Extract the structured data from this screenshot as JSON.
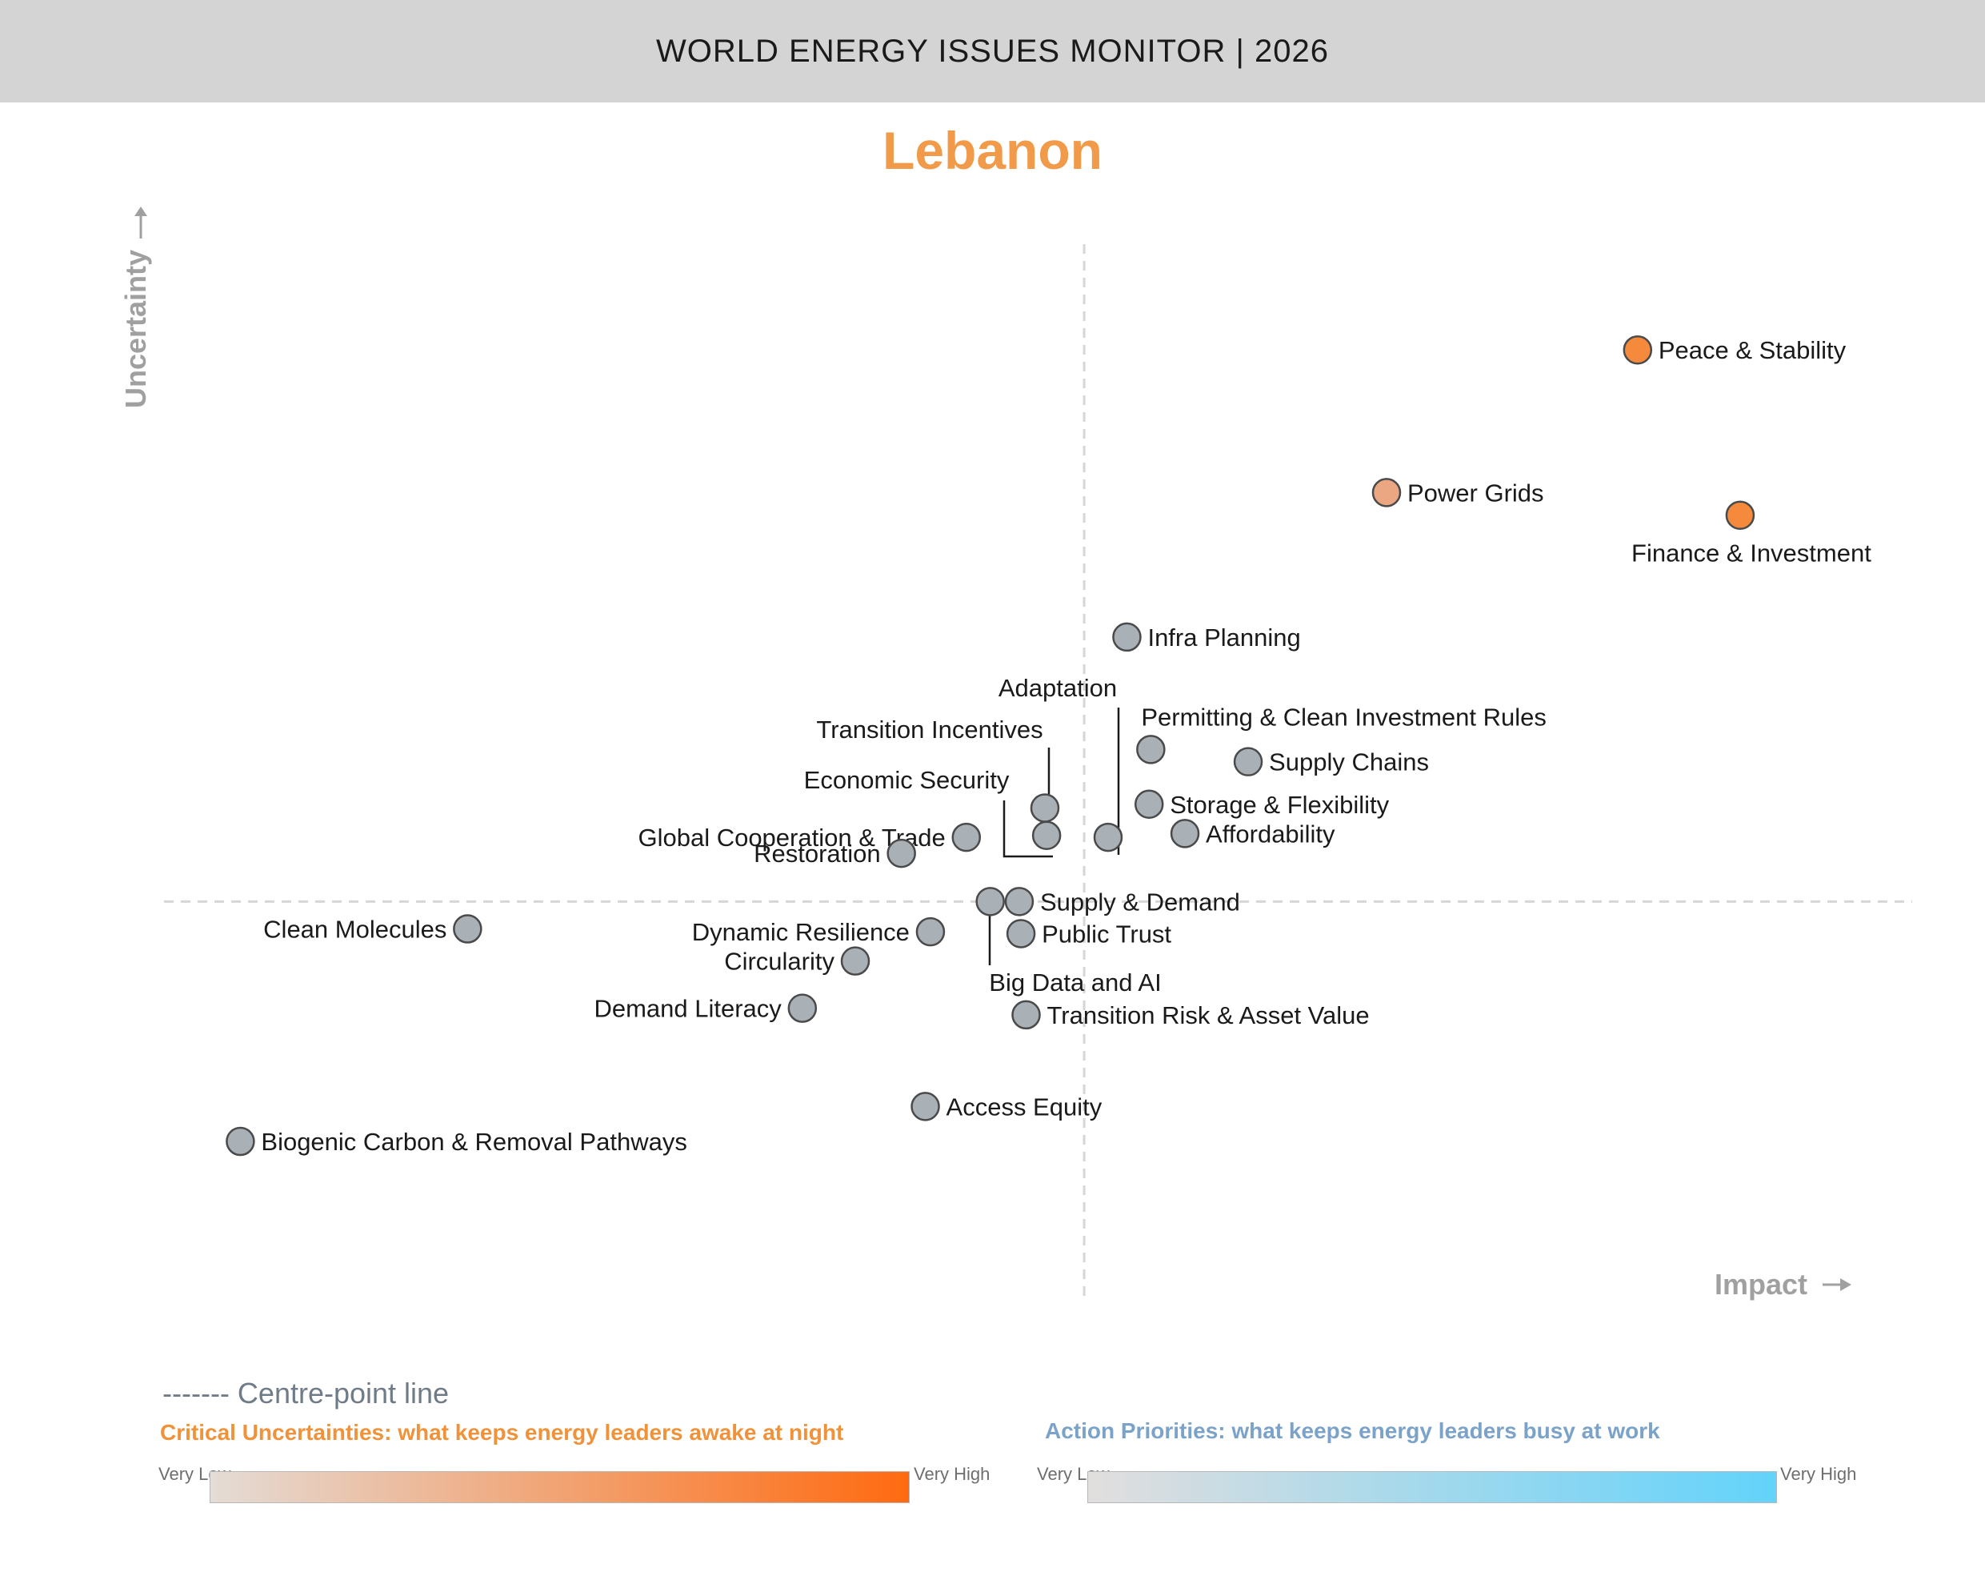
{
  "header": {
    "title": "WORLD ENERGY ISSUES MONITOR | 2026"
  },
  "country": "Lebanon",
  "chart_data": {
    "type": "scatter",
    "title": "Lebanon",
    "xlabel": "Impact",
    "ylabel": "Uncertainty",
    "xlim": [
      0,
      100
    ],
    "ylim": [
      0,
      100
    ],
    "centre_point": {
      "x": 53.4,
      "y": 37.6
    },
    "colors": {
      "very_high": "#f58a3c",
      "high": "#eaa781",
      "low": "#a9b0b6"
    },
    "points": [
      {
        "name": "Peace & Stability",
        "x": 85.8,
        "y": 96.0,
        "level": "very_high",
        "label_pos": "right"
      },
      {
        "name": "Power Grids",
        "x": 71.1,
        "y": 80.9,
        "level": "high",
        "label_pos": "right"
      },
      {
        "name": "Finance & Investment",
        "x": 91.8,
        "y": 78.5,
        "level": "very_high",
        "label_pos": "below"
      },
      {
        "name": "Infra Planning",
        "x": 55.9,
        "y": 65.6,
        "level": "low",
        "label_pos": "right"
      },
      {
        "name": "Permitting & Clean Investment Rules",
        "x": 57.3,
        "y": 53.7,
        "level": "low",
        "label_pos": "above"
      },
      {
        "name": "Supply Chains",
        "x": 63.0,
        "y": 52.4,
        "level": "low",
        "label_pos": "right"
      },
      {
        "name": "Storage & Flexibility",
        "x": 57.2,
        "y": 47.9,
        "level": "low",
        "label_pos": "right"
      },
      {
        "name": "Affordability",
        "x": 59.3,
        "y": 44.8,
        "level": "low",
        "label_pos": "right"
      },
      {
        "name": "Adaptation",
        "x": 54.8,
        "y": 44.4,
        "level": "low",
        "label_pos": "leader"
      },
      {
        "name": "Transition Incentives",
        "x": 51.1,
        "y": 47.5,
        "level": "low",
        "label_pos": "leader"
      },
      {
        "name": "Economic Security",
        "x": 51.2,
        "y": 44.6,
        "level": "low",
        "label_pos": "leader"
      },
      {
        "name": "Global Cooperation & Trade",
        "x": 46.5,
        "y": 44.4,
        "level": "low",
        "label_pos": "left"
      },
      {
        "name": "Restoration",
        "x": 42.7,
        "y": 42.7,
        "level": "low",
        "label_pos": "left"
      },
      {
        "name": "Supply & Demand",
        "x": 49.6,
        "y": 37.6,
        "level": "low",
        "label_pos": "right"
      },
      {
        "name": "Big Data and AI",
        "x": 47.9,
        "y": 37.6,
        "level": "low",
        "label_pos": "leader"
      },
      {
        "name": "Public Trust",
        "x": 49.7,
        "y": 34.2,
        "level": "low",
        "label_pos": "right"
      },
      {
        "name": "Dynamic Resilience",
        "x": 44.4,
        "y": 34.4,
        "level": "low",
        "label_pos": "left"
      },
      {
        "name": "Circularity",
        "x": 40.0,
        "y": 31.3,
        "level": "low",
        "label_pos": "left"
      },
      {
        "name": "Clean Molecules",
        "x": 17.3,
        "y": 34.7,
        "level": "low",
        "label_pos": "left"
      },
      {
        "name": "Demand Literacy",
        "x": 36.9,
        "y": 26.3,
        "level": "low",
        "label_pos": "left"
      },
      {
        "name": "Transition Risk & Asset Value",
        "x": 50.0,
        "y": 25.6,
        "level": "low",
        "label_pos": "right"
      },
      {
        "name": "Access Equity",
        "x": 44.1,
        "y": 15.9,
        "level": "low",
        "label_pos": "right"
      },
      {
        "name": "Biogenic Carbon & Removal Pathways",
        "x": 4.0,
        "y": 12.2,
        "level": "low",
        "label_pos": "right"
      }
    ]
  },
  "legend": {
    "centre_line": "------- Centre-point line",
    "critical_title": "Critical Uncertainties: what keeps energy leaders awake at night",
    "action_title": "Action Priorities: what keeps energy leaders busy at work",
    "very_low": "Very Low",
    "very_high": "Very High",
    "orange_gradient": [
      "#e4dcd6",
      "#ff6a10"
    ],
    "blue_gradient": [
      "#e2dede",
      "#62d3fb"
    ]
  }
}
